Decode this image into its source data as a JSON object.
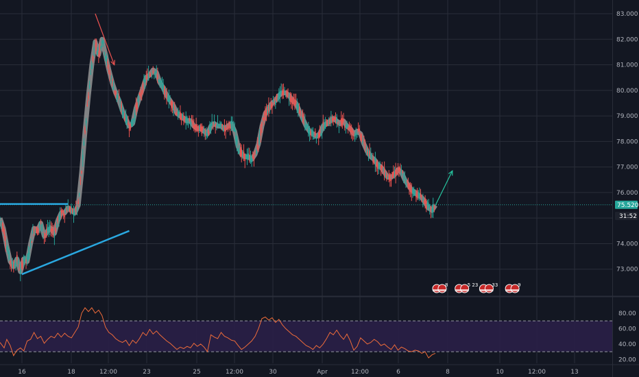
{
  "chart_data": [
    {
      "type": "candlestick",
      "title": "",
      "price_axis": {
        "ticks": [
          "83.000",
          "82.000",
          "81.000",
          "80.000",
          "79.000",
          "78.000",
          "77.000",
          "76.000",
          "75.000",
          "74.000",
          "73.000"
        ],
        "ylim": [
          72.0,
          83.0
        ]
      },
      "time_axis": {
        "ticks": [
          "16",
          "18",
          "12:00",
          "23",
          "25",
          "12:00",
          "30",
          "Apr",
          "12:00",
          "6",
          "8",
          "10",
          "12:00",
          "13"
        ]
      },
      "last_price": "75.520",
      "countdown": "31:52",
      "colors": {
        "background": "#131722",
        "grid": "#2a2e39",
        "up": "#26a69a",
        "down": "#ef5350",
        "moving_average": "#9e9e9e",
        "trendline": "#2aa8e0",
        "projection": "#26c6a0",
        "price_tag": "#26a69a"
      },
      "path": [
        [
          0,
          75.0
        ],
        [
          5,
          74.6
        ],
        [
          10,
          73.9
        ],
        [
          15,
          73.3
        ],
        [
          20,
          73.1
        ],
        [
          25,
          73.4
        ],
        [
          30,
          72.9
        ],
        [
          35,
          73.4
        ],
        [
          40,
          73.3
        ],
        [
          45,
          74.0
        ],
        [
          50,
          74.6
        ],
        [
          55,
          74.5
        ],
        [
          60,
          74.8
        ],
        [
          65,
          74.3
        ],
        [
          70,
          74.5
        ],
        [
          75,
          74.6
        ],
        [
          80,
          74.4
        ],
        [
          85,
          74.9
        ],
        [
          90,
          75.2
        ],
        [
          95,
          75.2
        ],
        [
          100,
          75.4
        ],
        [
          105,
          75.3
        ],
        [
          110,
          75.2
        ],
        [
          115,
          75.5
        ],
        [
          120,
          76.8
        ],
        [
          125,
          78.4
        ],
        [
          130,
          79.8
        ],
        [
          135,
          81.0
        ],
        [
          140,
          81.9
        ],
        [
          145,
          81.4
        ],
        [
          150,
          82.0
        ],
        [
          155,
          81.4
        ],
        [
          160,
          80.8
        ],
        [
          165,
          80.3
        ],
        [
          170,
          79.9
        ],
        [
          175,
          79.6
        ],
        [
          180,
          79.2
        ],
        [
          185,
          78.9
        ],
        [
          190,
          78.6
        ],
        [
          195,
          78.7
        ],
        [
          200,
          79.3
        ],
        [
          205,
          79.7
        ],
        [
          210,
          80.1
        ],
        [
          215,
          80.5
        ],
        [
          220,
          80.6
        ],
        [
          225,
          80.8
        ],
        [
          230,
          80.7
        ],
        [
          235,
          80.3
        ],
        [
          240,
          80.1
        ],
        [
          245,
          79.8
        ],
        [
          250,
          79.6
        ],
        [
          255,
          79.4
        ],
        [
          260,
          79.1
        ],
        [
          265,
          79.0
        ],
        [
          270,
          78.9
        ],
        [
          275,
          78.8
        ],
        [
          280,
          78.8
        ],
        [
          285,
          78.6
        ],
        [
          290,
          78.5
        ],
        [
          295,
          78.5
        ],
        [
          300,
          78.4
        ],
        [
          305,
          78.3
        ],
        [
          310,
          78.6
        ],
        [
          315,
          78.7
        ],
        [
          320,
          78.6
        ],
        [
          325,
          78.6
        ],
        [
          330,
          78.5
        ],
        [
          335,
          78.6
        ],
        [
          340,
          78.7
        ],
        [
          345,
          78.4
        ],
        [
          350,
          77.8
        ],
        [
          355,
          77.5
        ],
        [
          360,
          77.4
        ],
        [
          365,
          77.4
        ],
        [
          370,
          77.3
        ],
        [
          375,
          77.5
        ],
        [
          380,
          77.9
        ],
        [
          385,
          78.6
        ],
        [
          390,
          79.1
        ],
        [
          395,
          79.3
        ],
        [
          400,
          79.5
        ],
        [
          405,
          79.6
        ],
        [
          410,
          79.8
        ],
        [
          415,
          79.9
        ],
        [
          420,
          79.9
        ],
        [
          425,
          79.8
        ],
        [
          430,
          79.6
        ],
        [
          435,
          79.5
        ],
        [
          440,
          79.2
        ],
        [
          445,
          78.9
        ],
        [
          450,
          78.6
        ],
        [
          455,
          78.4
        ],
        [
          460,
          78.3
        ],
        [
          465,
          78.2
        ],
        [
          470,
          78.3
        ],
        [
          475,
          78.6
        ],
        [
          480,
          78.7
        ],
        [
          485,
          78.8
        ],
        [
          490,
          78.9
        ],
        [
          495,
          78.8
        ],
        [
          500,
          78.7
        ],
        [
          505,
          78.8
        ],
        [
          510,
          78.6
        ],
        [
          515,
          78.5
        ],
        [
          520,
          78.3
        ],
        [
          525,
          78.4
        ],
        [
          530,
          78.3
        ],
        [
          535,
          77.9
        ],
        [
          540,
          77.6
        ],
        [
          545,
          77.4
        ],
        [
          550,
          77.3
        ],
        [
          555,
          77.1
        ],
        [
          560,
          77.0
        ],
        [
          565,
          76.8
        ],
        [
          570,
          76.6
        ],
        [
          575,
          76.6
        ],
        [
          580,
          76.7
        ],
        [
          585,
          76.9
        ],
        [
          590,
          76.8
        ],
        [
          595,
          76.5
        ],
        [
          600,
          76.3
        ],
        [
          605,
          76.1
        ],
        [
          610,
          76.0
        ],
        [
          615,
          75.9
        ],
        [
          620,
          75.8
        ],
        [
          625,
          75.6
        ],
        [
          630,
          75.4
        ],
        [
          635,
          75.3
        ],
        [
          640,
          75.5
        ]
      ],
      "drawings": {
        "resistance_line": [
          [
            0,
            75.55
          ],
          [
            100,
            75.55
          ]
        ],
        "support_trendline": [
          [
            32,
            72.8
          ],
          [
            190,
            74.5
          ]
        ],
        "red_arrow": [
          [
            140,
            83.0
          ],
          [
            168,
            81.0
          ]
        ],
        "projection_arrow": [
          [
            640,
            75.5
          ],
          [
            665,
            76.85
          ]
        ]
      },
      "event_badges": [
        {
          "x": 650,
          "label": "8"
        },
        {
          "x": 683,
          "label": "5 23"
        },
        {
          "x": 719,
          "label": "33"
        },
        {
          "x": 757,
          "label": "9"
        }
      ]
    },
    {
      "type": "line",
      "title": "",
      "ticks": [
        "80.00",
        "60.00",
        "40.00",
        "20.00"
      ],
      "ylim": [
        15,
        95
      ],
      "overbought": 70,
      "oversold": 30,
      "colors": {
        "line": "#ef6c3a",
        "band": "#2a1f47",
        "guide": "#9598a1"
      },
      "path": [
        [
          0,
          42
        ],
        [
          6,
          35
        ],
        [
          10,
          46
        ],
        [
          15,
          38
        ],
        [
          20,
          25
        ],
        [
          25,
          32
        ],
        [
          30,
          35
        ],
        [
          35,
          31
        ],
        [
          40,
          44
        ],
        [
          45,
          46
        ],
        [
          50,
          55
        ],
        [
          55,
          47
        ],
        [
          60,
          50
        ],
        [
          65,
          41
        ],
        [
          70,
          46
        ],
        [
          75,
          50
        ],
        [
          80,
          48
        ],
        [
          85,
          54
        ],
        [
          90,
          49
        ],
        [
          95,
          54
        ],
        [
          100,
          50
        ],
        [
          105,
          48
        ],
        [
          110,
          55
        ],
        [
          115,
          62
        ],
        [
          120,
          80
        ],
        [
          125,
          87
        ],
        [
          130,
          82
        ],
        [
          135,
          87
        ],
        [
          140,
          80
        ],
        [
          145,
          84
        ],
        [
          150,
          77
        ],
        [
          155,
          62
        ],
        [
          160,
          55
        ],
        [
          165,
          52
        ],
        [
          170,
          47
        ],
        [
          175,
          44
        ],
        [
          180,
          42
        ],
        [
          185,
          45
        ],
        [
          190,
          38
        ],
        [
          195,
          45
        ],
        [
          200,
          41
        ],
        [
          205,
          47
        ],
        [
          210,
          55
        ],
        [
          215,
          51
        ],
        [
          220,
          59
        ],
        [
          225,
          53
        ],
        [
          230,
          57
        ],
        [
          235,
          52
        ],
        [
          240,
          48
        ],
        [
          245,
          44
        ],
        [
          250,
          41
        ],
        [
          255,
          37
        ],
        [
          260,
          33
        ],
        [
          265,
          36
        ],
        [
          270,
          34
        ],
        [
          275,
          37
        ],
        [
          280,
          35
        ],
        [
          285,
          41
        ],
        [
          290,
          37
        ],
        [
          295,
          40
        ],
        [
          300,
          36
        ],
        [
          305,
          30
        ],
        [
          310,
          52
        ],
        [
          315,
          49
        ],
        [
          320,
          47
        ],
        [
          325,
          55
        ],
        [
          330,
          50
        ],
        [
          335,
          48
        ],
        [
          340,
          45
        ],
        [
          345,
          44
        ],
        [
          350,
          38
        ],
        [
          355,
          33
        ],
        [
          360,
          36
        ],
        [
          365,
          40
        ],
        [
          370,
          44
        ],
        [
          375,
          50
        ],
        [
          380,
          60
        ],
        [
          385,
          73
        ],
        [
          390,
          75
        ],
        [
          395,
          71
        ],
        [
          400,
          74
        ],
        [
          405,
          68
        ],
        [
          410,
          72
        ],
        [
          415,
          65
        ],
        [
          420,
          60
        ],
        [
          425,
          56
        ],
        [
          430,
          52
        ],
        [
          435,
          50
        ],
        [
          440,
          46
        ],
        [
          445,
          42
        ],
        [
          450,
          38
        ],
        [
          455,
          36
        ],
        [
          460,
          33
        ],
        [
          465,
          38
        ],
        [
          470,
          35
        ],
        [
          475,
          40
        ],
        [
          480,
          47
        ],
        [
          485,
          55
        ],
        [
          490,
          52
        ],
        [
          495,
          58
        ],
        [
          500,
          51
        ],
        [
          505,
          46
        ],
        [
          510,
          53
        ],
        [
          515,
          44
        ],
        [
          520,
          32
        ],
        [
          525,
          37
        ],
        [
          530,
          48
        ],
        [
          535,
          44
        ],
        [
          540,
          40
        ],
        [
          545,
          42
        ],
        [
          550,
          46
        ],
        [
          555,
          43
        ],
        [
          560,
          38
        ],
        [
          565,
          40
        ],
        [
          570,
          36
        ],
        [
          575,
          33
        ],
        [
          580,
          39
        ],
        [
          585,
          32
        ],
        [
          590,
          36
        ],
        [
          595,
          34
        ],
        [
          600,
          31
        ],
        [
          605,
          30
        ],
        [
          610,
          32
        ],
        [
          615,
          31
        ],
        [
          620,
          28
        ],
        [
          625,
          30
        ],
        [
          630,
          22
        ],
        [
          635,
          26
        ],
        [
          640,
          28
        ]
      ]
    }
  ]
}
